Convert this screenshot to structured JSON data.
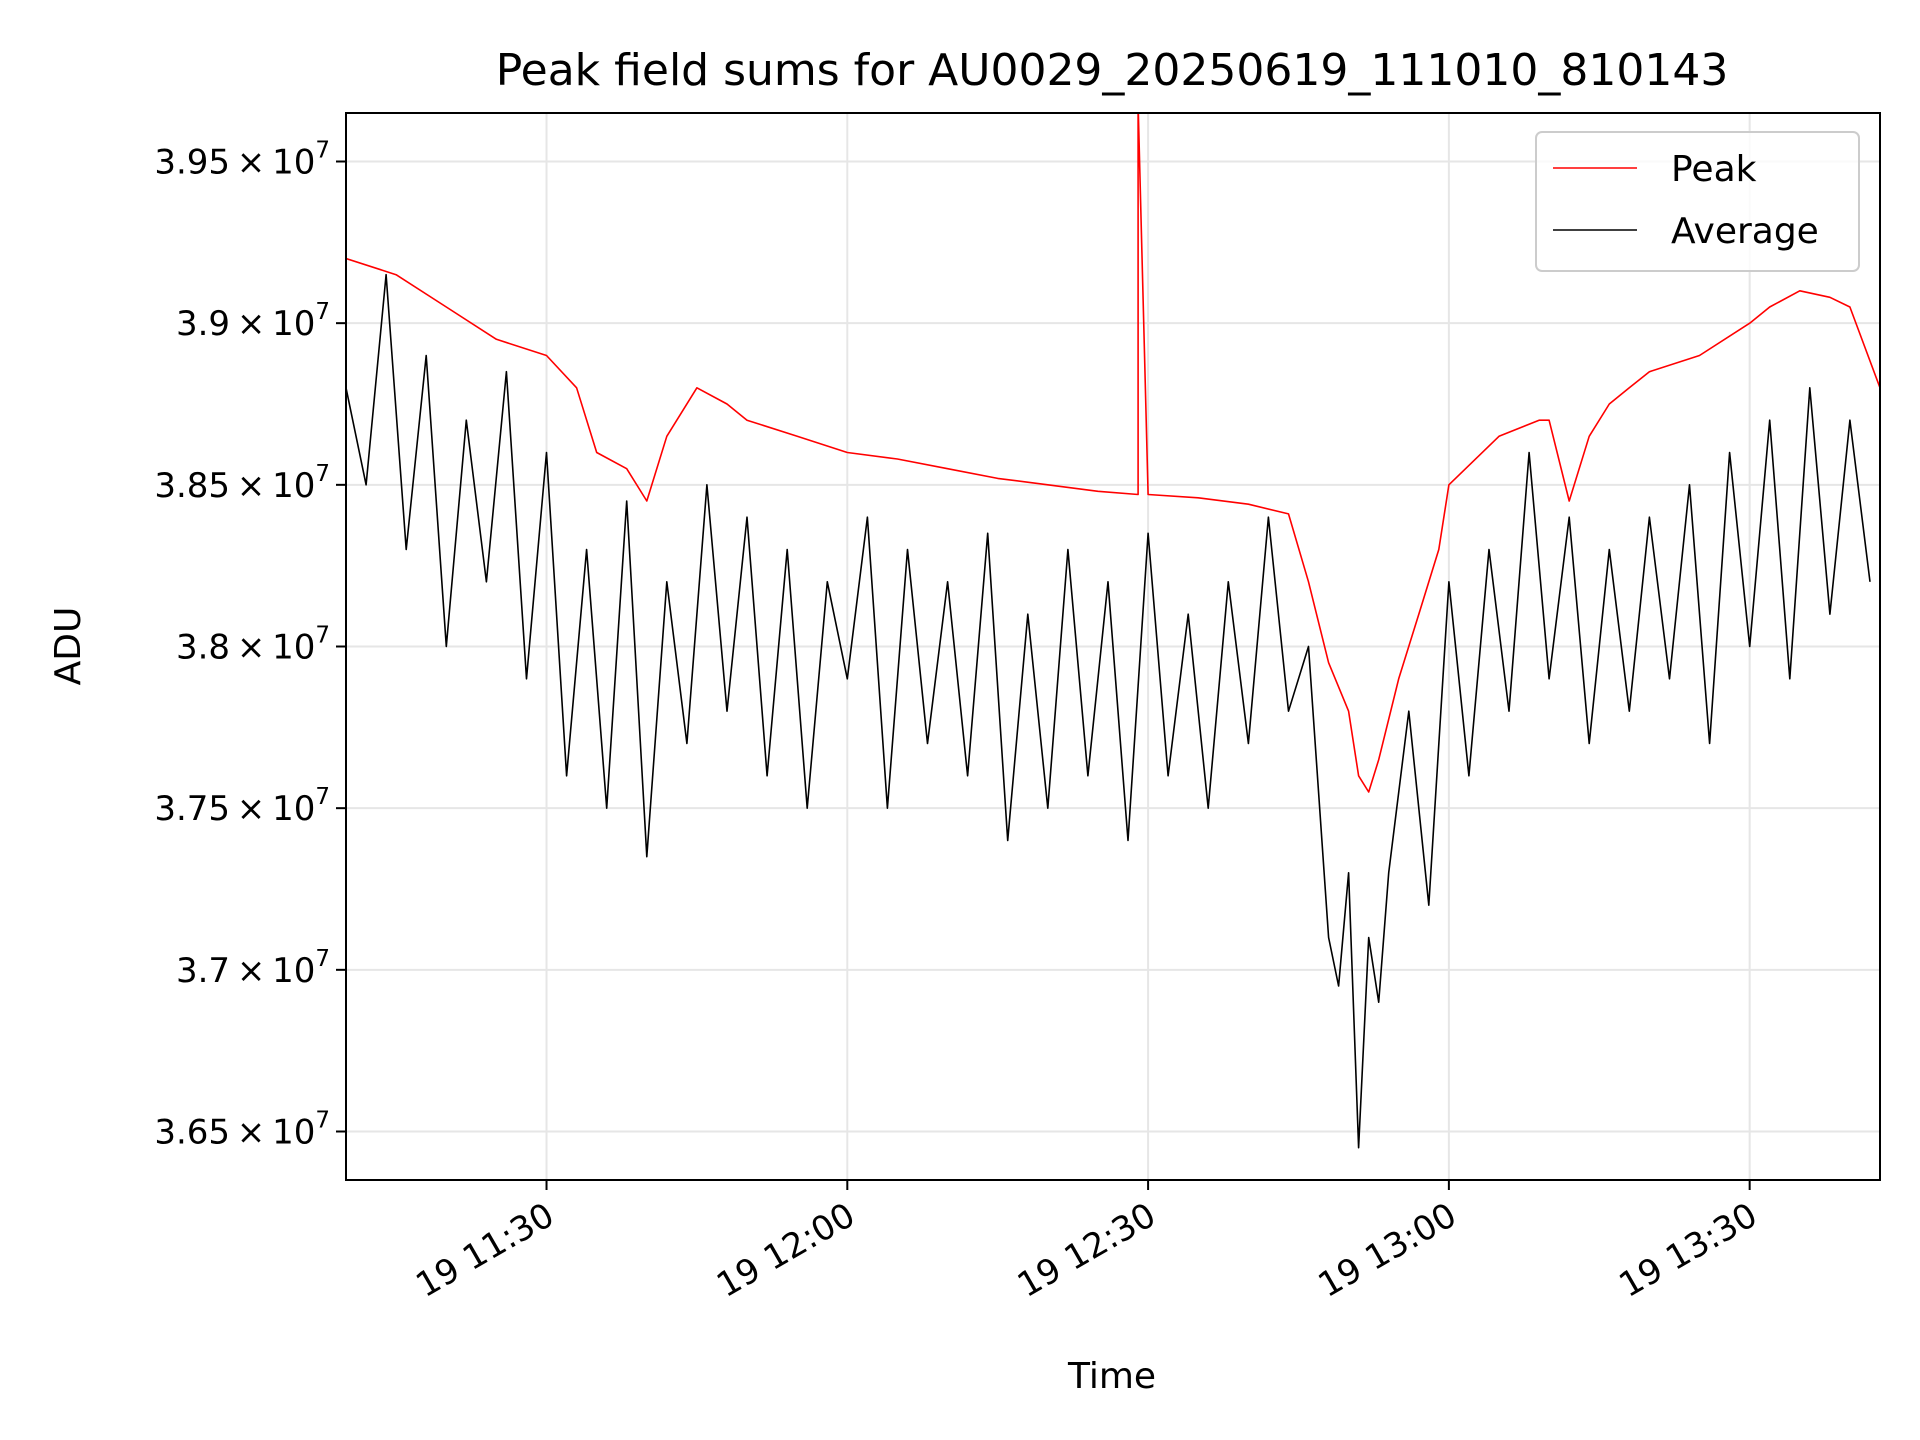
{
  "chart_data": {
    "type": "line",
    "title": "Peak field sums for AU0029_20250619_111010_810143",
    "xlabel": "Time",
    "ylabel": "ADU",
    "xlim": [
      "2025-06-19 11:10",
      "2025-06-19 13:43"
    ],
    "ylim": [
      36350000,
      39650000
    ],
    "x_ticks": [
      "19 11:30",
      "19 12:00",
      "19 12:30",
      "19 13:00",
      "19 13:30"
    ],
    "y_ticks": [
      {
        "value": 36500000,
        "mantissa": "3.65",
        "exponent": "7"
      },
      {
        "value": 37000000,
        "mantissa": "3.7",
        "exponent": "7"
      },
      {
        "value": 37500000,
        "mantissa": "3.75",
        "exponent": "7"
      },
      {
        "value": 38000000,
        "mantissa": "3.8",
        "exponent": "7"
      },
      {
        "value": 38500000,
        "mantissa": "3.85",
        "exponent": "7"
      },
      {
        "value": 39000000,
        "mantissa": "3.9",
        "exponent": "7"
      },
      {
        "value": 39500000,
        "mantissa": "3.95",
        "exponent": "7"
      }
    ],
    "grid": true,
    "legend_position": "top-right",
    "series": [
      {
        "name": "Peak",
        "color": "#ff0000",
        "x": [
          "11:10",
          "11:15",
          "11:20",
          "11:25",
          "11:30",
          "11:33",
          "11:35",
          "11:38",
          "11:40",
          "11:42",
          "11:45",
          "11:48",
          "11:50",
          "11:55",
          "12:00",
          "12:05",
          "12:10",
          "12:15",
          "12:20",
          "12:25",
          "12:29",
          "12:29",
          "12:30",
          "12:35",
          "12:40",
          "12:44",
          "12:46",
          "12:48",
          "12:50",
          "12:51",
          "12:52",
          "12:53",
          "12:55",
          "12:57",
          "12:59",
          "13:00",
          "13:05",
          "13:09",
          "13:10",
          "13:12",
          "13:14",
          "13:16",
          "13:18",
          "13:20",
          "13:25",
          "13:30",
          "13:32",
          "13:35",
          "13:38",
          "13:40",
          "13:43"
        ],
        "values": [
          39200000,
          39150000,
          39050000,
          38950000,
          38900000,
          38800000,
          38600000,
          38550000,
          38450000,
          38650000,
          38800000,
          38750000,
          38700000,
          38650000,
          38600000,
          38580000,
          38550000,
          38520000,
          38500000,
          38480000,
          38470000,
          39680000,
          38470000,
          38460000,
          38440000,
          38410000,
          38200000,
          37950000,
          37800000,
          37600000,
          37550000,
          37650000,
          37900000,
          38100000,
          38300000,
          38500000,
          38650000,
          38700000,
          38700000,
          38450000,
          38650000,
          38750000,
          38800000,
          38850000,
          38900000,
          39000000,
          39050000,
          39100000,
          39080000,
          39050000,
          38800000
        ]
      },
      {
        "name": "Average",
        "color": "#000000",
        "x": [
          "11:10",
          "11:12",
          "11:14",
          "11:16",
          "11:18",
          "11:20",
          "11:22",
          "11:24",
          "11:26",
          "11:28",
          "11:30",
          "11:32",
          "11:34",
          "11:36",
          "11:38",
          "11:40",
          "11:42",
          "11:44",
          "11:46",
          "11:48",
          "11:50",
          "11:52",
          "11:54",
          "11:56",
          "11:58",
          "12:00",
          "12:02",
          "12:04",
          "12:06",
          "12:08",
          "12:10",
          "12:12",
          "12:14",
          "12:16",
          "12:18",
          "12:20",
          "12:22",
          "12:24",
          "12:26",
          "12:28",
          "12:30",
          "12:32",
          "12:34",
          "12:36",
          "12:38",
          "12:40",
          "12:42",
          "12:44",
          "12:46",
          "12:48",
          "12:49",
          "12:50",
          "12:51",
          "12:52",
          "12:53",
          "12:54",
          "12:56",
          "12:58",
          "13:00",
          "13:02",
          "13:04",
          "13:06",
          "13:08",
          "13:10",
          "13:12",
          "13:14",
          "13:16",
          "13:18",
          "13:20",
          "13:22",
          "13:24",
          "13:26",
          "13:28",
          "13:30",
          "13:32",
          "13:34",
          "13:36",
          "13:38",
          "13:40",
          "13:42"
        ],
        "values": [
          38800000,
          38500000,
          39150000,
          38300000,
          38900000,
          38000000,
          38700000,
          38200000,
          38850000,
          37900000,
          38600000,
          37600000,
          38300000,
          37500000,
          38450000,
          37350000,
          38200000,
          37700000,
          38500000,
          37800000,
          38400000,
          37600000,
          38300000,
          37500000,
          38200000,
          37900000,
          38400000,
          37500000,
          38300000,
          37700000,
          38200000,
          37600000,
          38350000,
          37400000,
          38100000,
          37500000,
          38300000,
          37600000,
          38200000,
          37400000,
          38350000,
          37600000,
          38100000,
          37500000,
          38200000,
          37700000,
          38400000,
          37800000,
          38000000,
          37100000,
          36950000,
          37300000,
          36450000,
          37100000,
          36900000,
          37300000,
          37800000,
          37200000,
          38200000,
          37600000,
          38300000,
          37800000,
          38600000,
          37900000,
          38400000,
          37700000,
          38300000,
          37800000,
          38400000,
          37900000,
          38500000,
          37700000,
          38600000,
          38000000,
          38700000,
          37900000,
          38800000,
          38100000,
          38700000,
          38200000
        ]
      }
    ]
  }
}
